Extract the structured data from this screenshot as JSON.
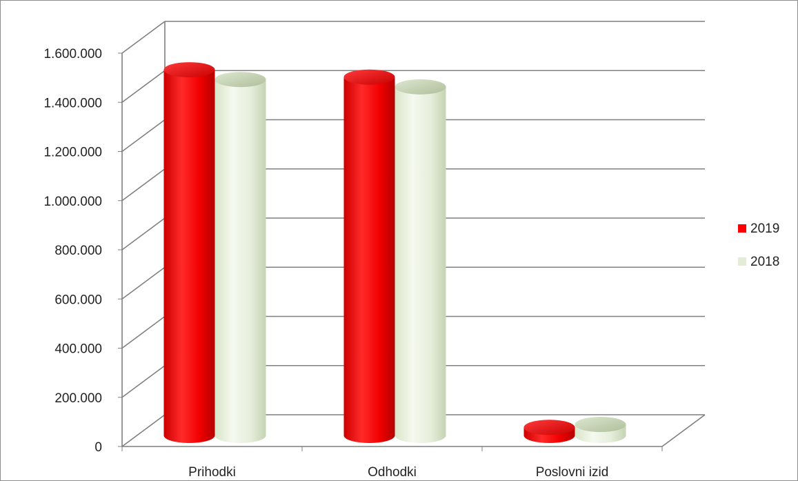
{
  "chart_data": {
    "type": "bar",
    "style": "3d-cylinder",
    "title": "",
    "xlabel": "",
    "ylabel": "",
    "ylim": [
      0,
      1600000
    ],
    "yticks": [
      {
        "value": 0,
        "label": "0"
      },
      {
        "value": 200000,
        "label": "200.000"
      },
      {
        "value": 400000,
        "label": "400.000"
      },
      {
        "value": 600000,
        "label": "600.000"
      },
      {
        "value": 800000,
        "label": "800.000"
      },
      {
        "value": 1000000,
        "label": "1.000.000"
      },
      {
        "value": 1200000,
        "label": "1.200.000"
      },
      {
        "value": 1400000,
        "label": "1.400.000"
      },
      {
        "value": 1600000,
        "label": "1.600.000"
      }
    ],
    "categories": [
      "Prihodki",
      "Odhodki",
      "Poslovni izid"
    ],
    "series": [
      {
        "name": "2019",
        "color": "#ff0000",
        "values": [
          1495000,
          1465000,
          33000
        ]
      },
      {
        "name": "2018",
        "color": "#e3ecd6",
        "values": [
          1455000,
          1425000,
          45000
        ]
      }
    ],
    "grid": true,
    "legend_position": "right"
  }
}
